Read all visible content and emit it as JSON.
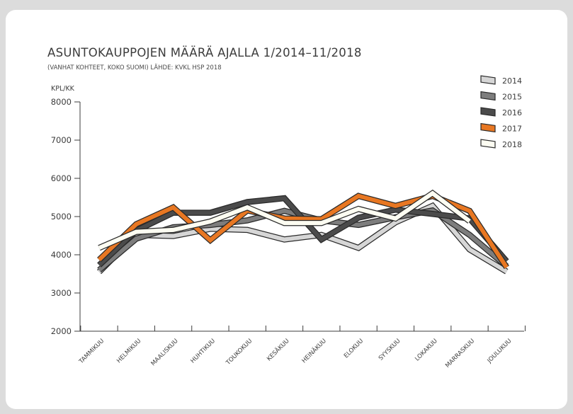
{
  "chart_data": {
    "type": "line",
    "title": "ASUNTOKAUPPOJEN MÄÄRÄ AJALLA 1/2014–11/2018",
    "subtitle": "(VANHAT KOHTEET, KOKO SUOMI) LÄHDE: KVKL HSP 2018",
    "ylabel": "KPL/KK",
    "xlabel": "",
    "ylim": [
      2000,
      8000
    ],
    "yticks": [
      "2000",
      "3000",
      "4000",
      "5000",
      "6000",
      "7000",
      "8000"
    ],
    "categories": [
      "TAMMIKUU",
      "HELMIKUU",
      "MAALISKUU",
      "HUHTIKUU",
      "TOUKOKUU",
      "KESÄKUU",
      "HEINÄKUU",
      "ELOKUU",
      "SYYSKUU",
      "LOKAKUU",
      "MARRASKUU",
      "JOULUKUU"
    ],
    "grid": false,
    "legend_position": "top-right",
    "series": [
      {
        "name": "2014",
        "color": "#d6d6d6",
        "values": [
          3550,
          4520,
          4490,
          4680,
          4650,
          4400,
          4520,
          4180,
          4850,
          5280,
          4140,
          3560
        ]
      },
      {
        "name": "2015",
        "color": "#7d7d7d",
        "values": [
          3600,
          4420,
          4720,
          4780,
          4900,
          5150,
          4900,
          4780,
          4980,
          5160,
          4520,
          3700
        ]
      },
      {
        "name": "2016",
        "color": "#4b4b4b",
        "values": [
          3730,
          4630,
          5100,
          5100,
          5380,
          5480,
          4400,
          4970,
          5180,
          5070,
          4950,
          3830
        ]
      },
      {
        "name": "2017",
        "color": "#e87722",
        "values": [
          3870,
          4800,
          5240,
          4380,
          5160,
          4950,
          4930,
          5540,
          5280,
          5540,
          5150,
          3670
        ]
      },
      {
        "name": "2018",
        "color": "#fdfdf2",
        "values": [
          4180,
          4600,
          4650,
          4870,
          5240,
          4830,
          4830,
          5200,
          4950,
          5610,
          4880,
          null
        ]
      }
    ]
  }
}
